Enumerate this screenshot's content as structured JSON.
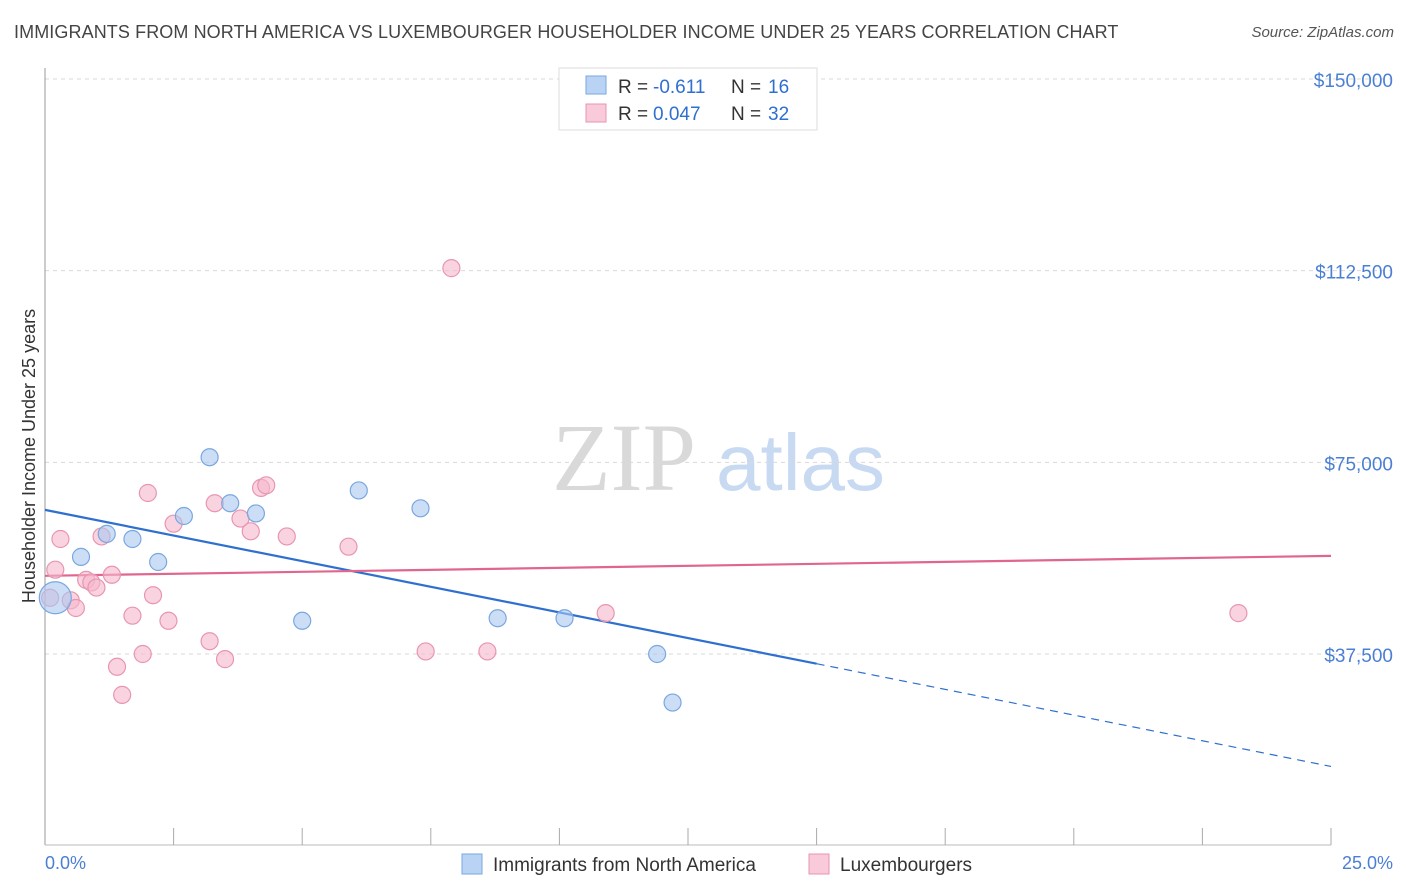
{
  "header": {
    "title": "IMMIGRANTS FROM NORTH AMERICA VS LUXEMBOURGER HOUSEHOLDER INCOME UNDER 25 YEARS CORRELATION CHART",
    "source": "Source: ZipAtlas.com"
  },
  "watermark": {
    "zip": "ZIP",
    "atlas": "atlas"
  },
  "legend": {
    "rows": [
      {
        "r_label": "R =",
        "r_value": "-0.611",
        "n_label": "N =",
        "n_value": "16",
        "color": "#a8c8f0"
      },
      {
        "r_label": "R =",
        "r_value": "0.047",
        "n_label": "N =",
        "n_value": "32",
        "color": "#f5b8cc"
      }
    ]
  },
  "bottom_legend": {
    "items": [
      {
        "label": "Immigrants from North America",
        "color": "#a8c8f0"
      },
      {
        "label": "Luxembourgers",
        "color": "#f5b8cc"
      }
    ]
  },
  "chart_data": {
    "type": "scatter",
    "title": "IMMIGRANTS FROM NORTH AMERICA VS LUXEMBOURGER HOUSEHOLDER INCOME UNDER 25 YEARS CORRELATION CHART",
    "xlabel": "",
    "ylabel": "Householder Income Under 25 years",
    "xlim": [
      0,
      25
    ],
    "ylim": [
      0,
      155000
    ],
    "x_tick_labels": [
      "0.0%",
      "25.0%"
    ],
    "y_ticks": [
      37500,
      75000,
      112500,
      150000
    ],
    "y_tick_labels": [
      "$37,500",
      "$75,000",
      "$112,500",
      "$150,000"
    ],
    "grid": true,
    "legend_position": "top-center",
    "series": [
      {
        "name": "Immigrants from North America",
        "color": "#a8c8f0",
        "stroke": "#7aa7e0",
        "line_color": "#2f6fd0",
        "points": [
          {
            "x": 0.2,
            "y": 48500,
            "size": "large"
          },
          {
            "x": 0.7,
            "y": 56500
          },
          {
            "x": 1.2,
            "y": 61000
          },
          {
            "x": 1.7,
            "y": 60000
          },
          {
            "x": 2.2,
            "y": 55500
          },
          {
            "x": 2.7,
            "y": 64500
          },
          {
            "x": 3.2,
            "y": 76000
          },
          {
            "x": 3.6,
            "y": 67000
          },
          {
            "x": 4.1,
            "y": 65000
          },
          {
            "x": 5.0,
            "y": 44000
          },
          {
            "x": 6.1,
            "y": 69500
          },
          {
            "x": 7.3,
            "y": 66000
          },
          {
            "x": 8.8,
            "y": 44500
          },
          {
            "x": 10.1,
            "y": 44500
          },
          {
            "x": 11.9,
            "y": 37500
          },
          {
            "x": 12.2,
            "y": 28000
          }
        ],
        "trend": {
          "x0": 0,
          "y0": 65700,
          "x1": 15,
          "y1": 35600,
          "x_dash_end": 25,
          "y_dash_end": 15500
        }
      },
      {
        "name": "Luxembourgers",
        "color": "#f5b8cc",
        "stroke": "#e896b0",
        "line_color": "#e0668f",
        "points": [
          {
            "x": 0.1,
            "y": 48500
          },
          {
            "x": 0.2,
            "y": 54000
          },
          {
            "x": 0.3,
            "y": 60000
          },
          {
            "x": 0.5,
            "y": 48000
          },
          {
            "x": 0.6,
            "y": 46500
          },
          {
            "x": 0.8,
            "y": 52000
          },
          {
            "x": 0.9,
            "y": 51500
          },
          {
            "x": 1.0,
            "y": 50500
          },
          {
            "x": 1.1,
            "y": 60500
          },
          {
            "x": 1.3,
            "y": 53000
          },
          {
            "x": 1.4,
            "y": 35000
          },
          {
            "x": 1.5,
            "y": 29500
          },
          {
            "x": 1.7,
            "y": 45000
          },
          {
            "x": 1.9,
            "y": 37500
          },
          {
            "x": 2.0,
            "y": 69000
          },
          {
            "x": 2.1,
            "y": 49000
          },
          {
            "x": 2.4,
            "y": 44000
          },
          {
            "x": 2.5,
            "y": 63000
          },
          {
            "x": 3.2,
            "y": 40000
          },
          {
            "x": 3.3,
            "y": 67000
          },
          {
            "x": 3.5,
            "y": 36500
          },
          {
            "x": 3.8,
            "y": 64000
          },
          {
            "x": 4.0,
            "y": 61500
          },
          {
            "x": 4.2,
            "y": 70000
          },
          {
            "x": 4.3,
            "y": 70500
          },
          {
            "x": 4.7,
            "y": 60500
          },
          {
            "x": 5.9,
            "y": 58500
          },
          {
            "x": 7.4,
            "y": 38000
          },
          {
            "x": 7.9,
            "y": 113000
          },
          {
            "x": 8.6,
            "y": 38000
          },
          {
            "x": 10.9,
            "y": 45500
          },
          {
            "x": 23.2,
            "y": 45500
          }
        ],
        "trend": {
          "x0": 0,
          "y0": 52800,
          "x1": 25,
          "y1": 56700
        }
      }
    ]
  }
}
